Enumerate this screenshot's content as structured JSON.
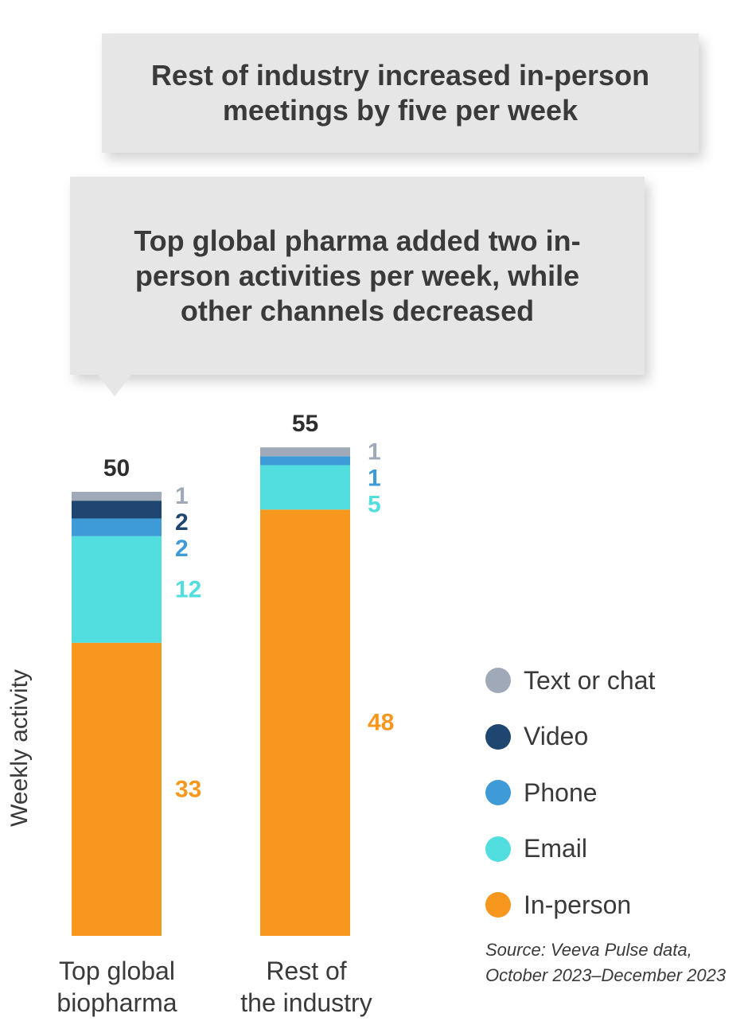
{
  "callouts": {
    "top": "Rest of industry increased in-person meetings by five per week",
    "bottom": "Top global pharma added two in-person activities per week, while other channels decreased"
  },
  "source": {
    "line1": "Source: Veeva Pulse data,",
    "line2": "October 2023–December 2023"
  },
  "chart_data": {
    "type": "bar",
    "stacked": true,
    "ylabel": "Weekly activity",
    "categories": [
      {
        "line1": "Top global",
        "line2": "biopharma"
      },
      {
        "line1": "Rest of",
        "line2": "the industry"
      }
    ],
    "totals": [
      50,
      55
    ],
    "series": [
      {
        "name": "In-person",
        "color": "#f7971e",
        "values": [
          33,
          48
        ]
      },
      {
        "name": "Email",
        "color": "#52dede",
        "values": [
          12,
          5
        ]
      },
      {
        "name": "Phone",
        "color": "#3f9ad8",
        "values": [
          2,
          1
        ]
      },
      {
        "name": "Video",
        "color": "#1e4670",
        "values": [
          2,
          null
        ]
      },
      {
        "name": "Text or chat",
        "color": "#a0a9b8",
        "values": [
          1,
          1
        ]
      }
    ],
    "legend_order": [
      "Text or chat",
      "Video",
      "Phone",
      "Email",
      "In-person"
    ],
    "legend_placement": "right",
    "grid": false
  }
}
